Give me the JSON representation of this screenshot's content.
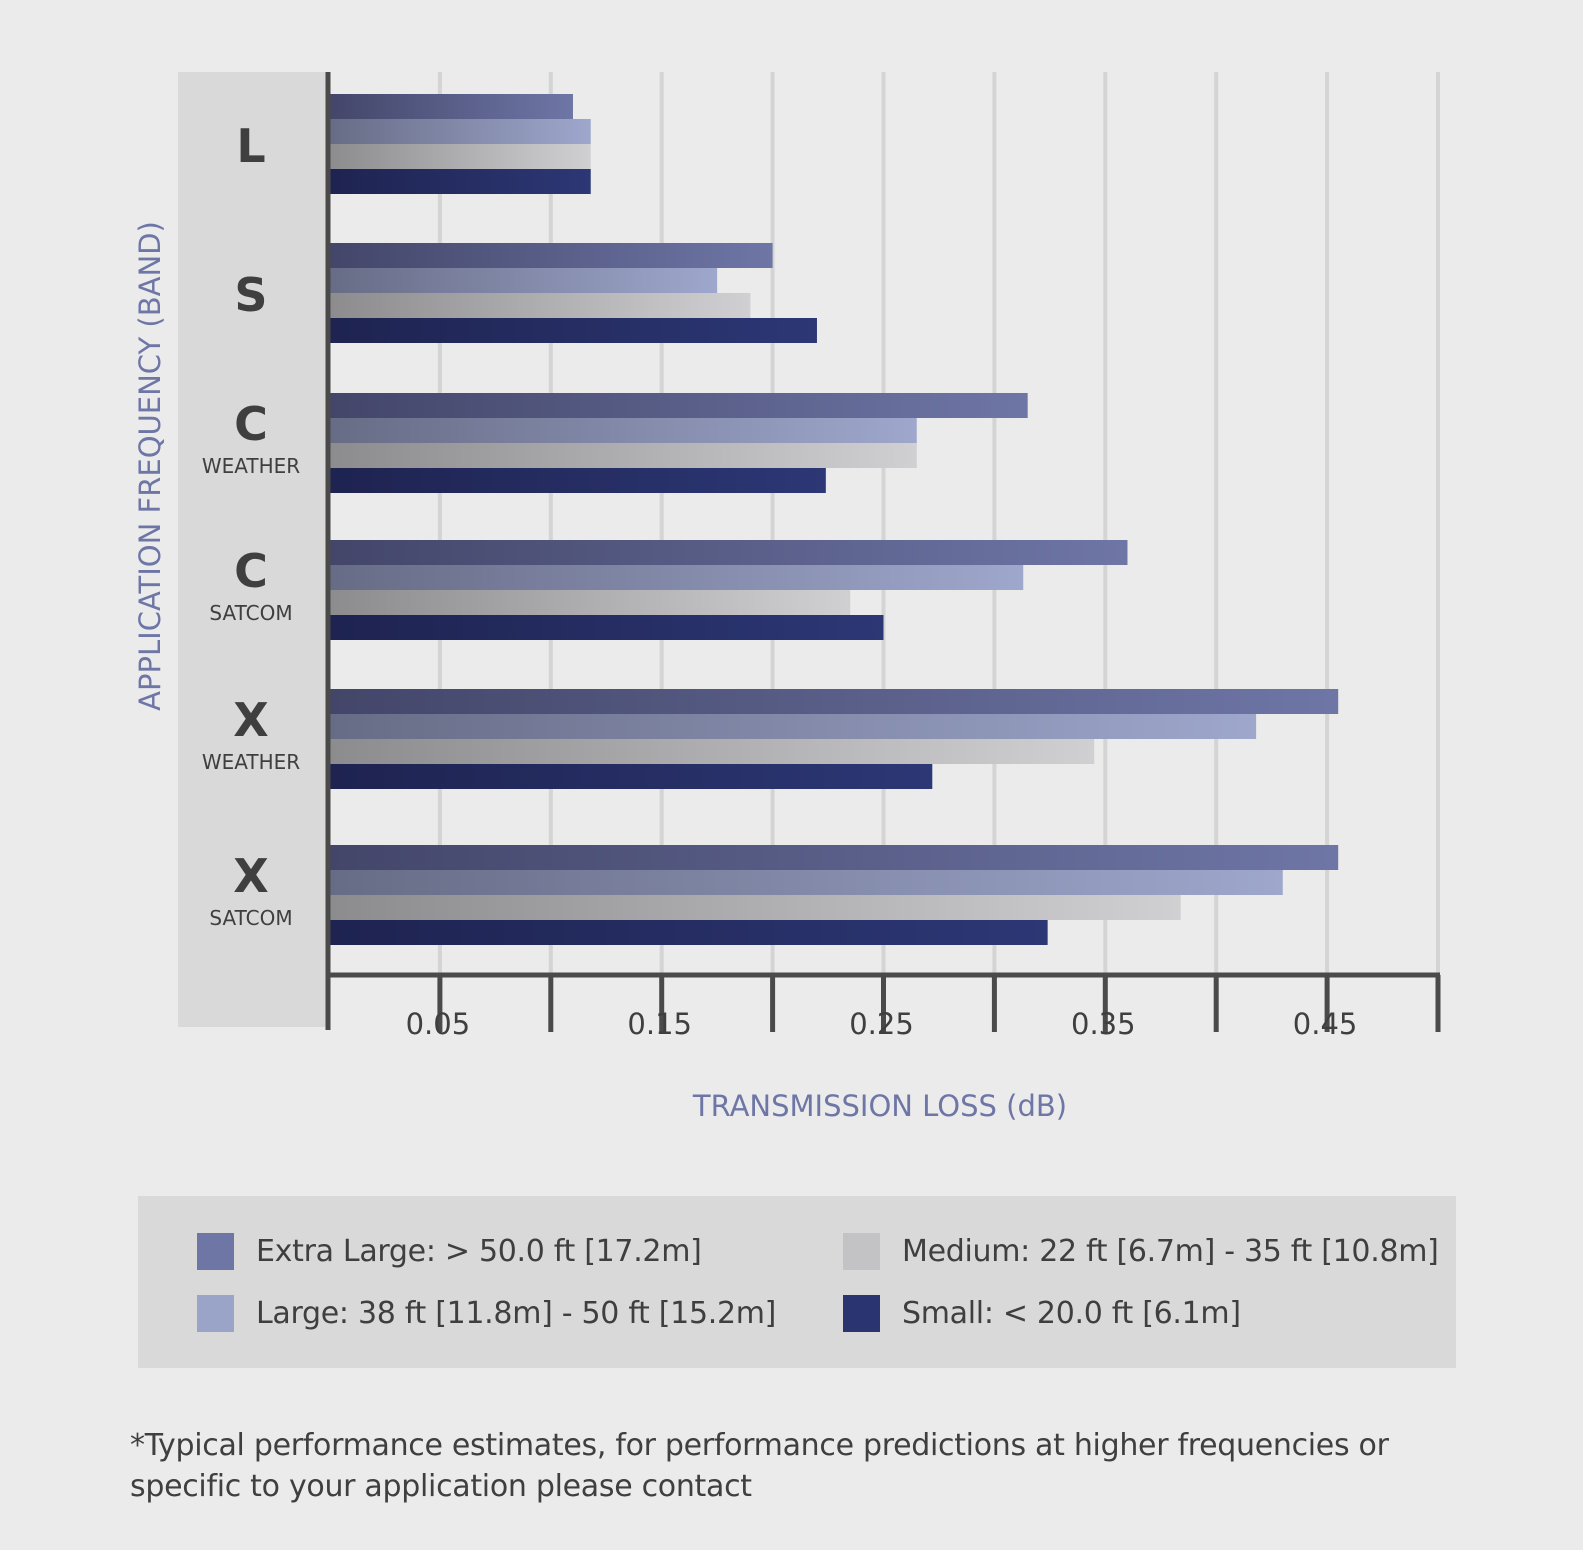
{
  "chart_data": {
    "type": "bar",
    "orientation": "horizontal",
    "xlabel": "TRANSMISSION LOSS (dB)",
    "ylabel": "APPLICATION FREQUENCY (BAND)",
    "xlim": [
      0,
      0.5
    ],
    "tick_values": [
      0.05,
      0.15,
      0.25,
      0.35,
      0.45
    ],
    "tick_labels": [
      "0.05",
      "0.15",
      "0.25",
      "0.35",
      "0.45"
    ],
    "gridlines": [
      0.05,
      0.1,
      0.15,
      0.2,
      0.25,
      0.3,
      0.35,
      0.4,
      0.45,
      0.5
    ],
    "categories": [
      {
        "band": "L",
        "sub": ""
      },
      {
        "band": "S",
        "sub": ""
      },
      {
        "band": "C",
        "sub": "WEATHER"
      },
      {
        "band": "C",
        "sub": "SATCOM"
      },
      {
        "band": "X",
        "sub": "WEATHER"
      },
      {
        "band": "X",
        "sub": "SATCOM"
      }
    ],
    "series": [
      {
        "name": "Extra Large: > 50.0 ft [17.2m]",
        "color": "#6e76a6",
        "values": [
          0.11,
          0.2,
          0.315,
          0.36,
          0.455,
          0.455
        ]
      },
      {
        "name": "Large: 38 ft [11.8m] - 50 ft [15.2m]",
        "color": "#9aa3c8",
        "values": [
          0.118,
          0.175,
          0.265,
          0.313,
          0.418,
          0.43
        ]
      },
      {
        "name": "Medium: 22 ft [6.7m] - 35 ft [10.8m]",
        "color": "#c3c3c6",
        "values": [
          0.118,
          0.19,
          0.265,
          0.235,
          0.345,
          0.384
        ]
      },
      {
        "name": "Small: < 20.0 ft [6.1m]",
        "color": "#2a3470",
        "values": [
          0.118,
          0.22,
          0.224,
          0.25,
          0.272,
          0.324
        ]
      }
    ]
  },
  "legend": [
    {
      "label": "Extra Large: > 50.0 ft [17.2m]",
      "color": "#6e76a6"
    },
    {
      "label": "Large: 38 ft [11.8m] - 50 ft [15.2m]",
      "color": "#9aa3c8"
    },
    {
      "label": "Medium: 22 ft [6.7m] - 35 ft [10.8m]",
      "color": "#c3c3c6"
    },
    {
      "label": "Small: < 20.0 ft [6.1m]",
      "color": "#2a3470"
    }
  ],
  "footnote": {
    "line1": "*Typical performance estimates, for performance predictions at higher frequencies or",
    "line2": "specific to your application please contact"
  },
  "colors": {
    "axis_title": "#6e76a6",
    "axis": "#4a4a4a",
    "grid": "#d4d4d4",
    "band_panel": "#d9d9d9",
    "text": "#3f3f3f"
  }
}
